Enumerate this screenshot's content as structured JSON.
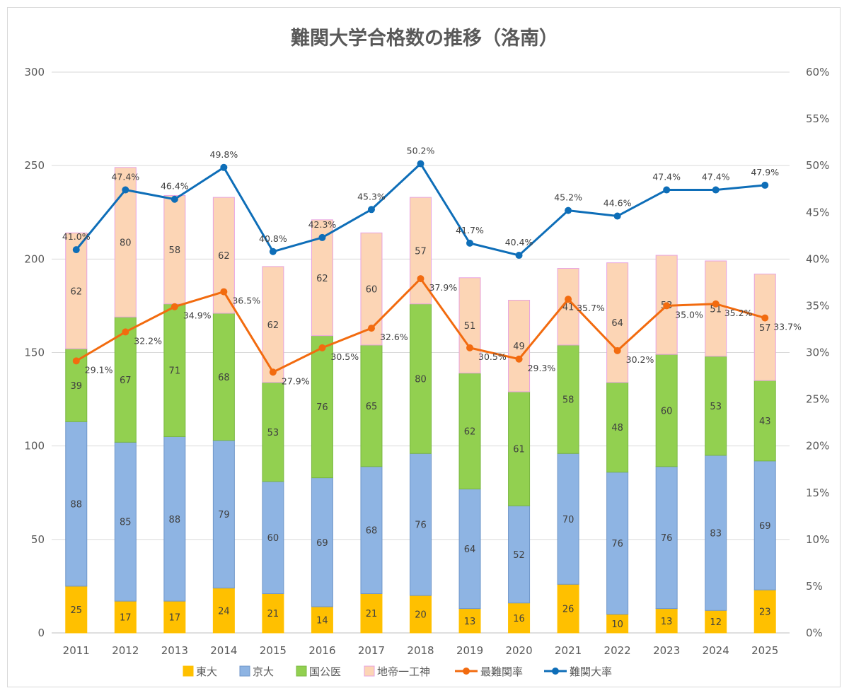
{
  "chart_data": {
    "type": "bar",
    "title": "難関大学合格数の推移（洛南）",
    "categories": [
      "2011",
      "2012",
      "2013",
      "2014",
      "2015",
      "2016",
      "2017",
      "2018",
      "2019",
      "2020",
      "2021",
      "2022",
      "2023",
      "2024",
      "2025"
    ],
    "stacked": true,
    "series": [
      {
        "name": "東大",
        "type": "bar",
        "axis": "left",
        "color": "#FFC000",
        "values": [
          25,
          17,
          17,
          24,
          21,
          14,
          21,
          20,
          13,
          16,
          26,
          10,
          13,
          12,
          23
        ]
      },
      {
        "name": "京大",
        "type": "bar",
        "axis": "left",
        "color": "#8EB4E3",
        "values": [
          88,
          85,
          88,
          79,
          60,
          69,
          68,
          76,
          64,
          52,
          70,
          76,
          76,
          83,
          69
        ]
      },
      {
        "name": "国公医",
        "type": "bar",
        "axis": "left",
        "color": "#92D050",
        "values": [
          39,
          67,
          71,
          68,
          53,
          76,
          65,
          80,
          62,
          61,
          58,
          48,
          60,
          53,
          43
        ]
      },
      {
        "name": "地帝一工神",
        "type": "bar",
        "axis": "left",
        "color": "#FCD5B5",
        "values": [
          62,
          80,
          58,
          62,
          62,
          62,
          60,
          57,
          51,
          49,
          41,
          64,
          53,
          51,
          57
        ]
      },
      {
        "name": "最難関率",
        "type": "line",
        "axis": "right",
        "color": "#F26B0F",
        "values": [
          29.1,
          32.2,
          34.9,
          36.5,
          27.9,
          30.5,
          32.6,
          37.9,
          30.5,
          29.3,
          35.7,
          30.2,
          35.0,
          35.2,
          33.7
        ],
        "labels": [
          "29.1%",
          "32.2%",
          "34.9%",
          "36.5%",
          "27.9%",
          "30.5%",
          "32.6%",
          "37.9%",
          "30.5%",
          "29.3%",
          "35.7%",
          "30.2%",
          "35.0%",
          "35.2%",
          "33.7%"
        ]
      },
      {
        "name": "難関大率",
        "type": "line",
        "axis": "right",
        "color": "#0E6EB8",
        "values": [
          41.0,
          47.4,
          46.4,
          49.8,
          40.8,
          42.3,
          45.3,
          50.2,
          41.7,
          40.4,
          45.2,
          44.6,
          47.4,
          47.4,
          47.9
        ],
        "labels": [
          "41.0%",
          "47.4%",
          "46.4%",
          "49.8%",
          "40.8%",
          "42.3%",
          "45.3%",
          "50.2%",
          "41.7%",
          "40.4%",
          "45.2%",
          "44.6%",
          "47.4%",
          "47.4%",
          "47.9%"
        ]
      }
    ],
    "y_left": {
      "min": 0,
      "max": 300,
      "step": 50,
      "ticks": [
        "0",
        "50",
        "100",
        "150",
        "200",
        "250",
        "300"
      ]
    },
    "y_right": {
      "min": 0,
      "max": 60,
      "step": 5,
      "ticks": [
        "0%",
        "5%",
        "10%",
        "15%",
        "20%",
        "25%",
        "30%",
        "35%",
        "40%",
        "45%",
        "50%",
        "55%",
        "60%"
      ]
    },
    "grid": true,
    "legend_position": "bottom"
  }
}
